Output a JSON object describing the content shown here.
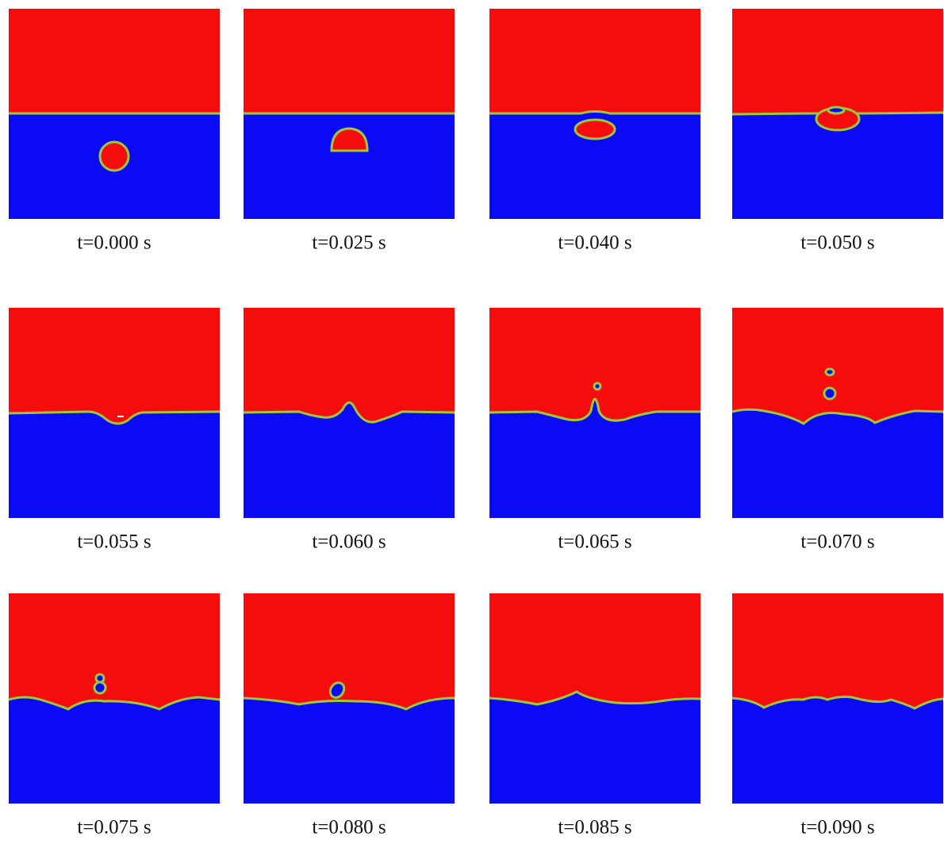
{
  "panels": [
    {
      "caption": "t=0.000 s"
    },
    {
      "caption": "t=0.025 s"
    },
    {
      "caption": "t=0.040 s"
    },
    {
      "caption": "t=0.050 s"
    },
    {
      "caption": "t=0.055 s"
    },
    {
      "caption": "t=0.060 s"
    },
    {
      "caption": "t=0.065 s"
    },
    {
      "caption": "t=0.070 s"
    },
    {
      "caption": "t=0.075 s"
    },
    {
      "caption": "t=0.080 s"
    },
    {
      "caption": "t=0.085 s"
    },
    {
      "caption": "t=0.090 s"
    }
  ]
}
